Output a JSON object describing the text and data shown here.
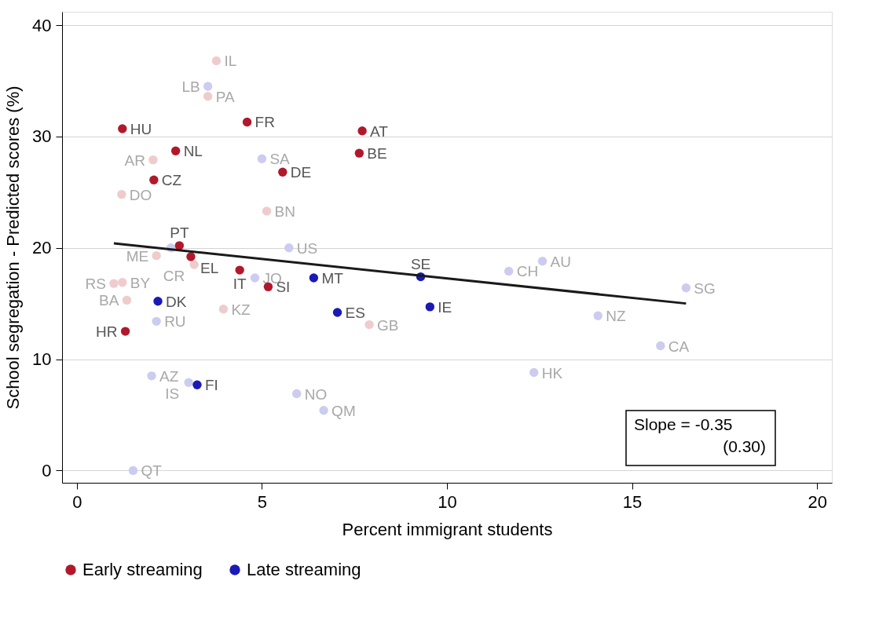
{
  "chart_data": {
    "type": "scatter",
    "xlabel": "Percent immigrant students",
    "ylabel": "School segregation - Predicted scores (%)",
    "xlim": [
      -0.4,
      20.4
    ],
    "ylim": [
      -1.1,
      41.2
    ],
    "xticks": [
      0,
      5,
      10,
      15,
      20
    ],
    "yticks": [
      0,
      10,
      20,
      30,
      40
    ],
    "grid": "y",
    "legend": "bottom",
    "marker": "circle",
    "series": [
      {
        "color": "#efcccc",
        "x": [
          3.77,
          3.54,
          2.06,
          1.21,
          5.13,
          2.15,
          3.17,
          1.0,
          1.23,
          1.35,
          3.96,
          7.9
        ],
        "values": [
          36.8,
          33.6,
          27.9,
          24.8,
          23.3,
          19.3,
          18.5,
          16.8,
          16.9,
          15.3,
          14.5,
          13.1
        ],
        "value_labels": [
          "IL",
          "PA",
          "AR",
          "DO",
          "BN",
          "ME",
          "CR",
          "RS",
          "BY",
          "BA",
          "KZ",
          "GB"
        ]
      },
      {
        "color": "#ccccf0",
        "x": [
          3.54,
          5.0,
          5.73,
          2.54,
          4.81,
          2.15,
          2.02,
          3.02,
          5.94,
          6.67,
          1.52,
          11.67,
          12.58,
          16.46,
          14.08,
          15.77,
          12.35
        ],
        "values": [
          34.5,
          28.0,
          20.0,
          20.0,
          17.3,
          13.4,
          8.5,
          7.9,
          6.9,
          5.4,
          0,
          17.9,
          18.8,
          16.4,
          13.9,
          11.2,
          8.8
        ],
        "value_labels": [
          "LB",
          "SA",
          "US",
          null,
          "JO",
          "RU",
          "AZ",
          "IS",
          "NO",
          "QM",
          "QT",
          "CH",
          "AU",
          "SG",
          "NZ",
          "CA",
          "HK"
        ]
      },
      {
        "name": "Early streaming",
        "color": "#b2182b",
        "x": [
          1.23,
          4.6,
          7.71,
          2.67,
          7.63,
          2.08,
          5.56,
          2.77,
          3.08,
          4.4,
          5.17,
          1.31
        ],
        "values": [
          30.7,
          31.3,
          30.5,
          28.7,
          28.5,
          26.1,
          26.8,
          20.2,
          19.2,
          18.0,
          16.5,
          12.5
        ],
        "value_labels": [
          "HU",
          "FR",
          "AT",
          "NL",
          "BE",
          "CZ",
          "DE",
          "PT",
          "EL",
          "IT",
          "SI",
          "HR"
        ]
      },
      {
        "name": "Late streaming",
        "color": "#1a1ab5",
        "x": [
          2.19,
          6.4,
          9.29,
          7.04,
          9.54,
          3.25
        ],
        "values": [
          15.2,
          17.3,
          17.4,
          14.2,
          14.7,
          7.7
        ],
        "value_labels": [
          "DK",
          "MT",
          "SE",
          "ES",
          "IE",
          "FI"
        ]
      },
      {
        "type": "line",
        "color": "#1a1a1a",
        "x": [
          1.0,
          16.46
        ],
        "values": [
          20.4,
          15.0
        ],
        "marker": "none"
      }
    ],
    "annotations": [
      "Slope = -0.35",
      "(0.30)"
    ]
  }
}
